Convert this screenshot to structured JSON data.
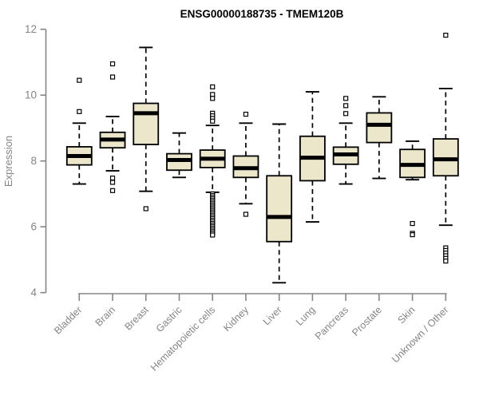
{
  "colors": {
    "background": "#ffffff",
    "box_fill": "#ECE7CB",
    "box_stroke": "#000000",
    "median_stroke": "#000000",
    "whisker_stroke": "#000000",
    "outlier_stroke": "#000000",
    "outlier_fill": "#ffffff",
    "axis": "#858585",
    "tick_label": "#858585",
    "title_color": "#000000"
  },
  "chart_data": {
    "type": "boxplot",
    "title": "ENSG00000188735 - TMEM120B",
    "ylabel": "Expression",
    "xlabel": "",
    "ylim": [
      4,
      12
    ],
    "yticks": [
      4,
      6,
      8,
      10,
      12
    ],
    "grid": false,
    "legend": "none",
    "categories": [
      "Bladder",
      "Brain",
      "Breast",
      "Gastric",
      "Hematopoietic cells",
      "Kidney",
      "Liver",
      "Lung",
      "Pancreas",
      "Prostate",
      "Skin",
      "Unknown / Other"
    ],
    "series": [
      {
        "label": "Bladder",
        "whisker_low": 7.3,
        "q1": 7.88,
        "median": 8.15,
        "q3": 8.43,
        "whisker_high": 9.15,
        "outliers": [
          10.45,
          9.5
        ]
      },
      {
        "label": "Brain",
        "whisker_low": 7.7,
        "q1": 8.4,
        "median": 8.65,
        "q3": 8.87,
        "whisker_high": 9.35,
        "outliers": [
          10.95,
          10.55,
          7.48,
          7.35,
          7.1
        ]
      },
      {
        "label": "Breast",
        "whisker_low": 7.08,
        "q1": 8.5,
        "median": 9.45,
        "q3": 9.75,
        "whisker_high": 11.45,
        "outliers": [
          6.55
        ]
      },
      {
        "label": "Gastric",
        "whisker_low": 7.5,
        "q1": 7.72,
        "median": 8.03,
        "q3": 8.22,
        "whisker_high": 8.85,
        "outliers": []
      },
      {
        "label": "Hematopoietic cells",
        "whisker_low": 7.05,
        "q1": 7.8,
        "median": 8.07,
        "q3": 8.33,
        "whisker_high": 9.08,
        "outliers": [
          10.25,
          10.02,
          9.9,
          9.45,
          9.37,
          9.29,
          9.21,
          7.0,
          6.95,
          6.9,
          6.85,
          6.8,
          6.75,
          6.7,
          6.65,
          6.6,
          6.55,
          6.5,
          6.45,
          6.4,
          6.35,
          6.3,
          6.25,
          6.2,
          6.15,
          6.1,
          6.05,
          6.0,
          5.95,
          5.9,
          5.85,
          5.8,
          5.75
        ]
      },
      {
        "label": "Kidney",
        "whisker_low": 6.7,
        "q1": 7.5,
        "median": 7.78,
        "q3": 8.15,
        "whisker_high": 9.15,
        "outliers": [
          9.42,
          6.38
        ]
      },
      {
        "label": "Liver",
        "whisker_low": 4.3,
        "q1": 5.55,
        "median": 6.3,
        "q3": 7.55,
        "whisker_high": 9.12,
        "outliers": []
      },
      {
        "label": "Lung",
        "whisker_low": 6.15,
        "q1": 7.4,
        "median": 8.1,
        "q3": 8.75,
        "whisker_high": 10.1,
        "outliers": []
      },
      {
        "label": "Pancreas",
        "whisker_low": 7.3,
        "q1": 7.9,
        "median": 8.2,
        "q3": 8.42,
        "whisker_high": 9.15,
        "outliers": [
          9.9,
          9.68,
          9.44
        ]
      },
      {
        "label": "Prostate",
        "whisker_low": 7.47,
        "q1": 8.56,
        "median": 9.1,
        "q3": 9.46,
        "whisker_high": 9.95,
        "outliers": []
      },
      {
        "label": "Skin",
        "whisker_low": 7.43,
        "q1": 7.5,
        "median": 7.88,
        "q3": 8.35,
        "whisker_high": 8.6,
        "outliers": [
          6.1,
          5.8,
          5.76
        ]
      },
      {
        "label": "Unknown / Other",
        "whisker_low": 6.05,
        "q1": 7.55,
        "median": 8.05,
        "q3": 8.67,
        "whisker_high": 10.2,
        "outliers": [
          11.82,
          5.36,
          5.28,
          5.2,
          5.12,
          5.04,
          4.96
        ]
      }
    ]
  }
}
